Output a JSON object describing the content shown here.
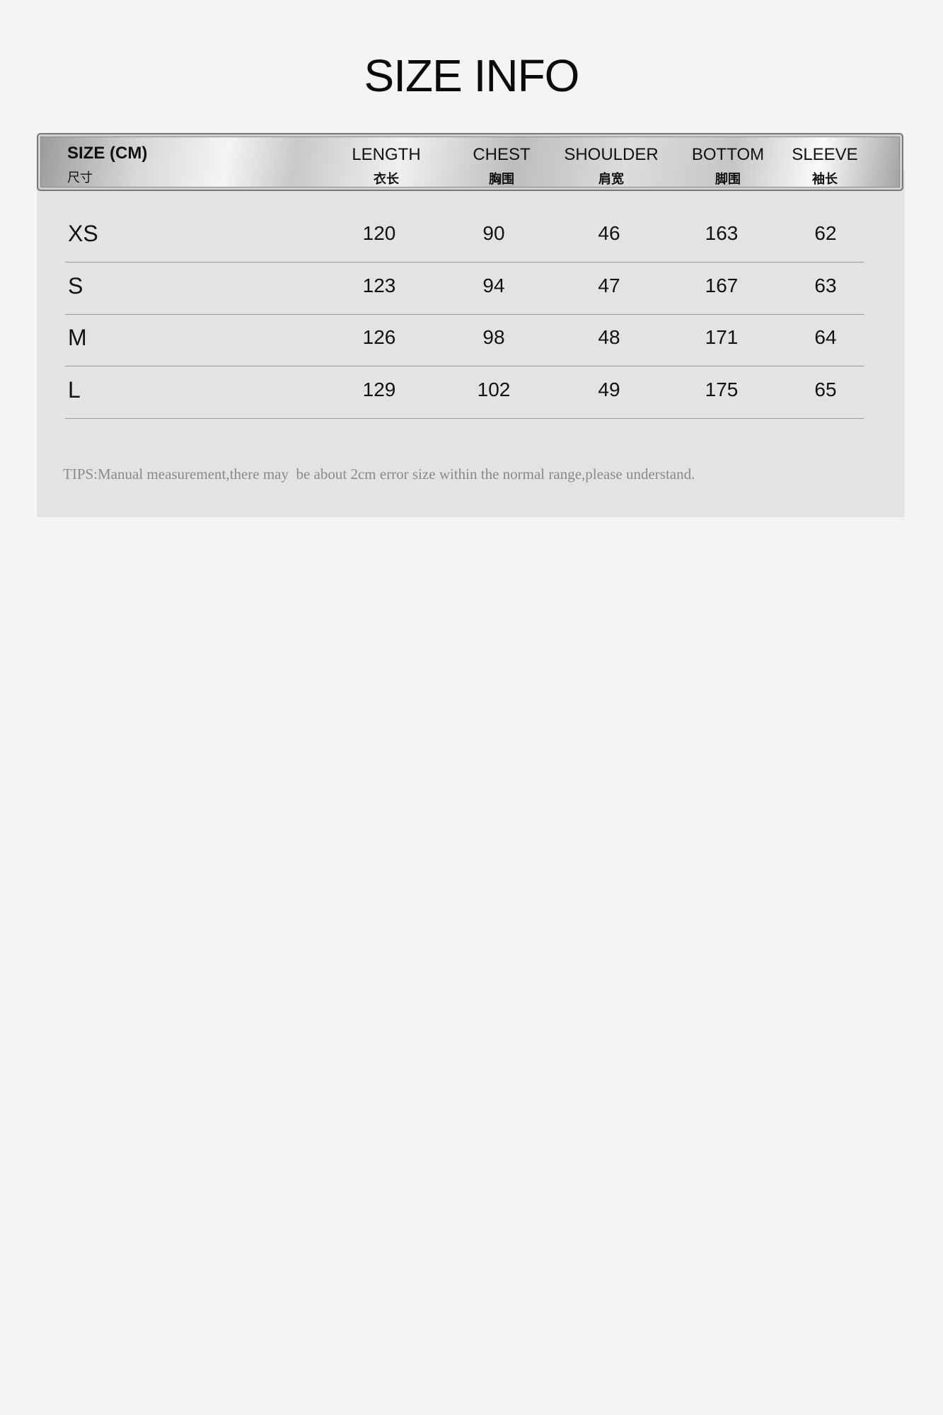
{
  "title": "SIZE INFO",
  "header": [
    {
      "en": "SIZE (CM)",
      "cn": "尺寸"
    },
    {
      "en": "LENGTH",
      "cn": "衣长"
    },
    {
      "en": "CHEST",
      "cn": "胸围"
    },
    {
      "en": "SHOULDER",
      "cn": "肩宽"
    },
    {
      "en": "BOTTOM",
      "cn": "脚围"
    },
    {
      "en": "SLEEVE",
      "cn": "袖长"
    }
  ],
  "rows": [
    {
      "size": "XS",
      "values": [
        "120",
        "90",
        "46",
        "163",
        "62"
      ]
    },
    {
      "size": "S",
      "values": [
        "123",
        "94",
        "47",
        "167",
        "63"
      ]
    },
    {
      "size": "M",
      "values": [
        "126",
        "98",
        "48",
        "171",
        "64"
      ]
    },
    {
      "size": "L",
      "values": [
        "129",
        "102",
        "49",
        "175",
        "65"
      ]
    }
  ],
  "tips": "TIPS:Manual measurement,there may  be about 2cm error size within the normal range,please understand."
}
